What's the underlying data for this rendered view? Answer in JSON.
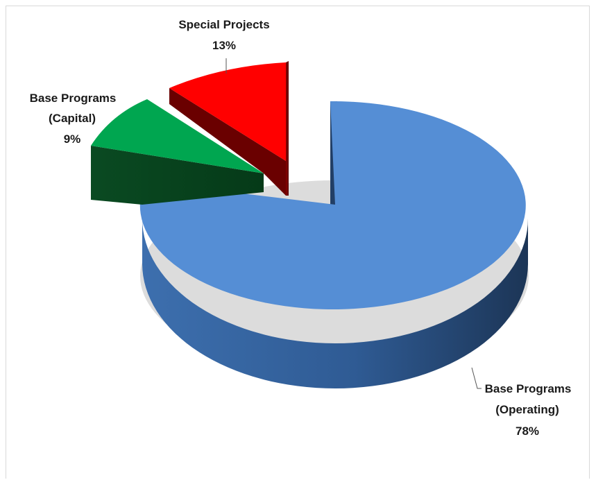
{
  "chart_data": {
    "type": "pie",
    "title": "",
    "style": "3d-exploded",
    "slices": [
      {
        "label_lines": [
          "Base Programs",
          "(Operating)"
        ],
        "percent_label": "78%",
        "value": 78,
        "color": "#558ed5"
      },
      {
        "label_lines": [
          "Base Programs",
          "(Capital)"
        ],
        "percent_label": "9%",
        "value": 9,
        "color": "#00a650"
      },
      {
        "label_lines": [
          "Special Projects"
        ],
        "percent_label": "13%",
        "value": 13,
        "color": "#ff0000"
      }
    ]
  }
}
